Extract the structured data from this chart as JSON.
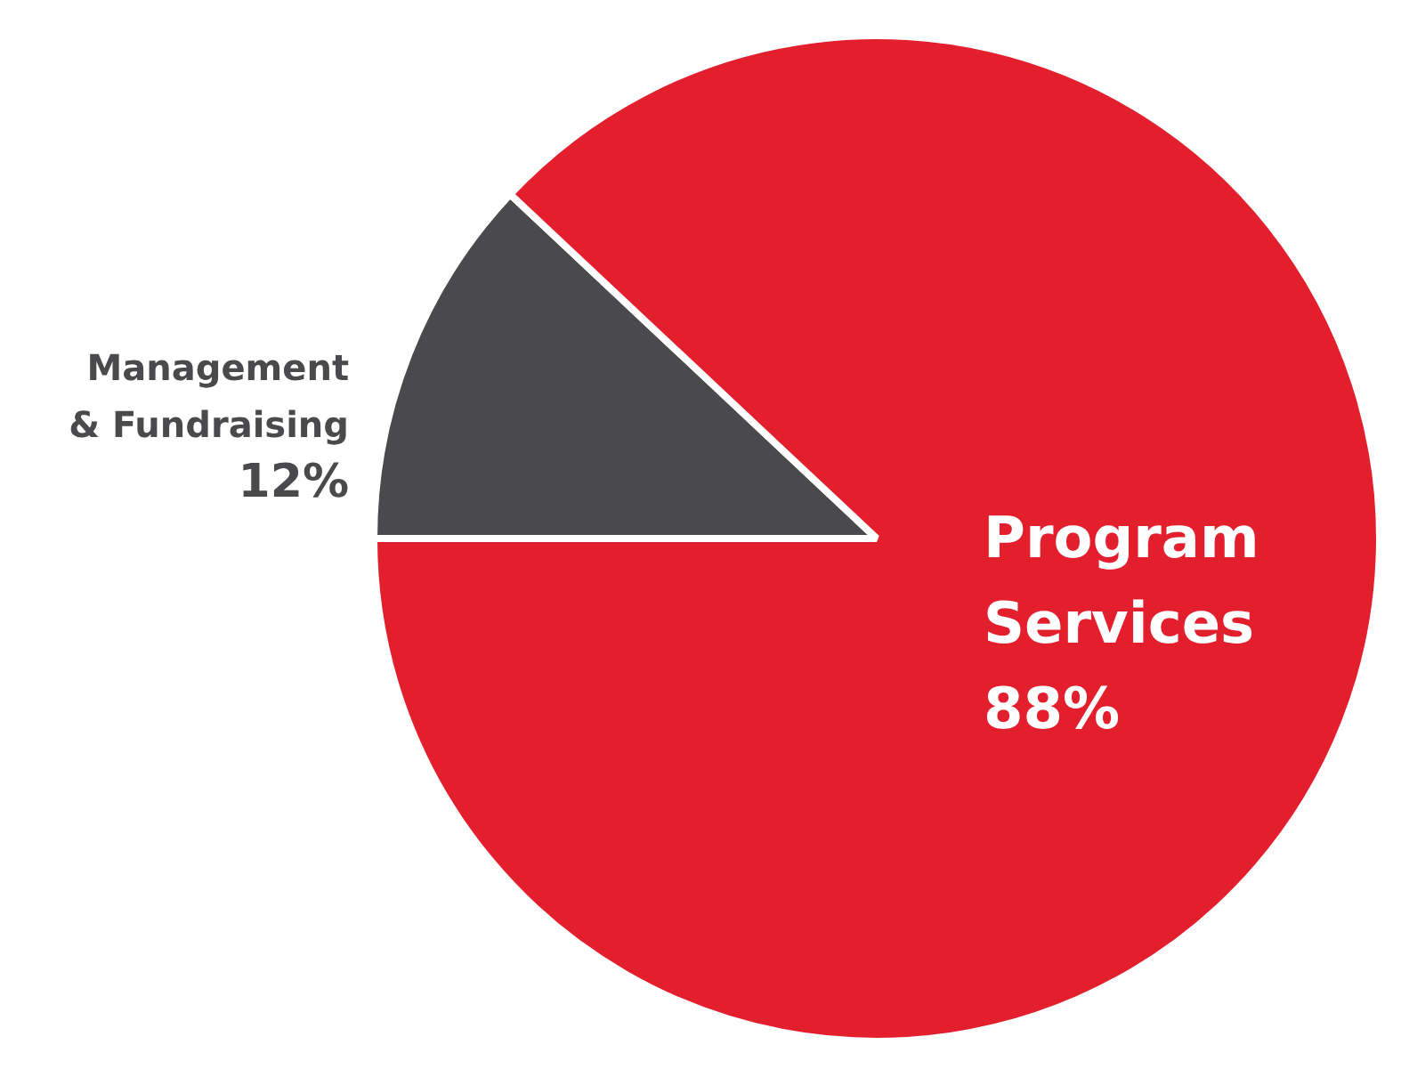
{
  "chart_data": {
    "type": "pie",
    "categories": [
      "Management & Fundraising",
      "Program Services"
    ],
    "values": [
      12,
      88
    ],
    "value_labels": [
      "12%",
      "88%"
    ],
    "colors": [
      "#4a4a4d",
      "#e31e2d"
    ],
    "legend": false
  }
}
